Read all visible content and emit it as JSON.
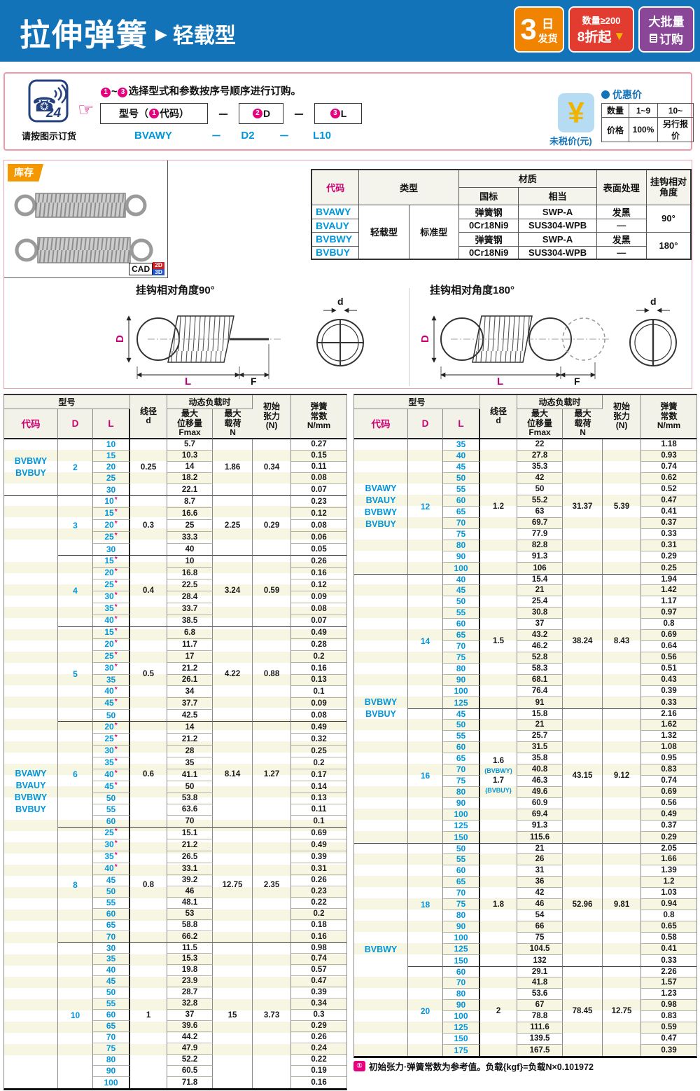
{
  "page": {
    "title": "拉伸弹簧",
    "subtitle": "轻载型",
    "arrow": "▶",
    "badges": {
      "ship": {
        "big": "3",
        "unit": "日",
        "caption": "发货"
      },
      "discount": {
        "top": "数量≥200",
        "bottom": "8折起",
        "arrow": "▼"
      },
      "bulk": {
        "top": "大批量",
        "bottom": "订购"
      }
    }
  },
  "order": {
    "phone_number": "24",
    "phone_caption": "请按图示订货",
    "hand": "☞",
    "instruction": "①~③选择型式和参数按序号顺序进行订购。",
    "boxes": [
      "型号（①代码）",
      "②D",
      "③L"
    ],
    "separator": "－",
    "example": [
      "BVAWY",
      "D2",
      "L10"
    ],
    "price": {
      "symbol": "¥",
      "caption": "未税价(元)",
      "title": "优惠价",
      "rows": [
        [
          "数量",
          "1~9",
          "10~"
        ],
        [
          "价格",
          "100%",
          "另行报价"
        ]
      ]
    }
  },
  "stock": {
    "badge": "库存",
    "cad": {
      "label": "CAD",
      "d2": "2D",
      "d3": "3D"
    }
  },
  "materials": {
    "h_code": "代码",
    "h_type": "类型",
    "h_material": "材质",
    "h_gb": "国标",
    "h_equiv": "相当",
    "h_surface": "表面处理",
    "h_angle": "挂钩相对\n角度",
    "type_light": "轻载型",
    "type_std": "标准型",
    "rows": [
      {
        "code": "BVAWY",
        "gb": "弹簧钢",
        "equiv": "SWP-A",
        "surface": "发黑",
        "angle": "90°"
      },
      {
        "code": "BVAUY",
        "gb": "0Cr18Ni9",
        "equiv": "SUS304-WPB",
        "surface": "—"
      },
      {
        "code": "BVBWY",
        "gb": "弹簧钢",
        "equiv": "SWP-A",
        "surface": "发黑",
        "angle": "180°"
      },
      {
        "code": "BVBUY",
        "gb": "0Cr18Ni9",
        "equiv": "SUS304-WPB",
        "surface": "—"
      }
    ]
  },
  "diagrams": {
    "left_title": "挂钩相对角度90°",
    "right_title": "挂钩相对角度180°",
    "dims": {
      "D": "D",
      "L": "L",
      "F": "F",
      "d": "d"
    }
  },
  "spec_header": {
    "model": "型号",
    "code": "代码",
    "D": "D",
    "L": "L",
    "wire": "线径\nd",
    "dynamic": "动态负载时",
    "fmax": "最大\n位移量\nFmax",
    "maxload": "最大\n载荷\nN",
    "tension": "初始\n张力\n(N)",
    "rate": "弹簧\n常数\nN/mm"
  },
  "left_table": {
    "blocks": [
      {
        "codes": [
          "BVBWY",
          "BVBUY"
        ],
        "groups": [
          0
        ]
      },
      {
        "codes": [
          "BVAWY",
          "BVAUY",
          "BVBWY",
          "BVBUY"
        ],
        "groups": [
          1,
          2,
          3,
          4,
          5,
          6
        ]
      }
    ],
    "groups": [
      {
        "D": "2",
        "d": "0.25",
        "load": "1.86",
        "tension": "0.34",
        "rows": [
          [
            "10",
            0,
            "5.7",
            "0.27"
          ],
          [
            "15",
            0,
            "10.3",
            "0.15"
          ],
          [
            "20",
            0,
            "14",
            "0.11"
          ],
          [
            "25",
            0,
            "18.2",
            "0.08"
          ],
          [
            "30",
            0,
            "22.1",
            "0.07"
          ]
        ]
      },
      {
        "D": "3",
        "d": "0.3",
        "load": "2.25",
        "tension": "0.29",
        "rows": [
          [
            "10",
            1,
            "8.7",
            "0.23"
          ],
          [
            "15",
            1,
            "16.6",
            "0.12"
          ],
          [
            "20",
            1,
            "25",
            "0.08"
          ],
          [
            "25",
            1,
            "33.3",
            "0.06"
          ],
          [
            "30",
            0,
            "40",
            "0.05"
          ]
        ]
      },
      {
        "D": "4",
        "d": "0.4",
        "load": "3.24",
        "tension": "0.59",
        "rows": [
          [
            "15",
            1,
            "10",
            "0.26"
          ],
          [
            "20",
            1,
            "16.8",
            "0.16"
          ],
          [
            "25",
            1,
            "22.5",
            "0.12"
          ],
          [
            "30",
            1,
            "28.4",
            "0.09"
          ],
          [
            "35",
            1,
            "33.7",
            "0.08"
          ],
          [
            "40",
            1,
            "38.5",
            "0.07"
          ]
        ]
      },
      {
        "D": "5",
        "d": "0.5",
        "load": "4.22",
        "tension": "0.88",
        "rows": [
          [
            "15",
            1,
            "6.8",
            "0.49"
          ],
          [
            "20",
            1,
            "11.7",
            "0.28"
          ],
          [
            "25",
            1,
            "17",
            "0.2"
          ],
          [
            "30",
            1,
            "21.2",
            "0.16"
          ],
          [
            "35",
            0,
            "26.1",
            "0.13"
          ],
          [
            "40",
            1,
            "34",
            "0.1"
          ],
          [
            "45",
            1,
            "37.7",
            "0.09"
          ],
          [
            "50",
            0,
            "42.5",
            "0.08"
          ]
        ]
      },
      {
        "D": "6",
        "d": "0.6",
        "load": "8.14",
        "tension": "1.27",
        "rows": [
          [
            "20",
            1,
            "14",
            "0.49"
          ],
          [
            "25",
            1,
            "21.2",
            "0.32"
          ],
          [
            "30",
            1,
            "28",
            "0.25"
          ],
          [
            "35",
            1,
            "35",
            "0.2"
          ],
          [
            "40",
            1,
            "41.1",
            "0.17"
          ],
          [
            "45",
            1,
            "50",
            "0.14"
          ],
          [
            "50",
            0,
            "53.8",
            "0.13"
          ],
          [
            "55",
            0,
            "63.6",
            "0.11"
          ],
          [
            "60",
            0,
            "70",
            "0.1"
          ]
        ]
      },
      {
        "D": "8",
        "d": "0.8",
        "load": "12.75",
        "tension": "2.35",
        "rows": [
          [
            "25",
            1,
            "15.1",
            "0.69"
          ],
          [
            "30",
            1,
            "21.2",
            "0.49"
          ],
          [
            "35",
            1,
            "26.5",
            "0.39"
          ],
          [
            "40",
            1,
            "33.1",
            "0.31"
          ],
          [
            "45",
            0,
            "39.2",
            "0.26"
          ],
          [
            "50",
            0,
            "46",
            "0.23"
          ],
          [
            "55",
            0,
            "48.1",
            "0.22"
          ],
          [
            "60",
            0,
            "53",
            "0.2"
          ],
          [
            "65",
            0,
            "58.8",
            "0.18"
          ],
          [
            "70",
            0,
            "66.2",
            "0.16"
          ]
        ]
      },
      {
        "D": "10",
        "d": "1",
        "load": "15",
        "tension": "3.73",
        "rows": [
          [
            "30",
            0,
            "11.5",
            "0.98"
          ],
          [
            "35",
            0,
            "15.3",
            "0.74"
          ],
          [
            "40",
            0,
            "19.8",
            "0.57"
          ],
          [
            "45",
            0,
            "23.9",
            "0.47"
          ],
          [
            "50",
            0,
            "28.7",
            "0.39"
          ],
          [
            "55",
            0,
            "32.8",
            "0.34"
          ],
          [
            "60",
            0,
            "37",
            "0.3"
          ],
          [
            "65",
            0,
            "39.6",
            "0.29"
          ],
          [
            "70",
            0,
            "44.2",
            "0.26"
          ],
          [
            "75",
            0,
            "47.9",
            "0.24"
          ],
          [
            "80",
            0,
            "52.2",
            "0.22"
          ],
          [
            "90",
            0,
            "60.5",
            "0.19"
          ],
          [
            "100",
            0,
            "71.8",
            "0.16"
          ]
        ]
      }
    ]
  },
  "right_table": {
    "blocks": [
      {
        "codes": [
          "BVAWY",
          "BVAUY",
          "BVBWY",
          "BVBUY"
        ],
        "groups": [
          0
        ]
      },
      {
        "codes": [
          "BVBWY",
          "BVBUY"
        ],
        "groups": [
          1,
          2
        ]
      },
      {
        "codes": [
          "BVBWY"
        ],
        "groups": [
          3,
          4
        ]
      }
    ],
    "groups": [
      {
        "D": "12",
        "d": "1.2",
        "load": "31.37",
        "tension": "5.39",
        "rows": [
          [
            "35",
            0,
            "22",
            "1.18"
          ],
          [
            "40",
            0,
            "27.8",
            "0.93"
          ],
          [
            "45",
            0,
            "35.3",
            "0.74"
          ],
          [
            "50",
            0,
            "42",
            "0.62"
          ],
          [
            "55",
            0,
            "50",
            "0.52"
          ],
          [
            "60",
            0,
            "55.2",
            "0.47"
          ],
          [
            "65",
            0,
            "63",
            "0.41"
          ],
          [
            "70",
            0,
            "69.7",
            "0.37"
          ],
          [
            "75",
            0,
            "77.9",
            "0.33"
          ],
          [
            "80",
            0,
            "82.8",
            "0.31"
          ],
          [
            "90",
            0,
            "91.3",
            "0.29"
          ],
          [
            "100",
            0,
            "106",
            "0.25"
          ]
        ]
      },
      {
        "D": "14",
        "d": "1.5",
        "load": "38.24",
        "tension": "8.43",
        "rows": [
          [
            "40",
            0,
            "15.4",
            "1.94"
          ],
          [
            "45",
            0,
            "21",
            "1.42"
          ],
          [
            "50",
            0,
            "25.4",
            "1.17"
          ],
          [
            "55",
            0,
            "30.8",
            "0.97"
          ],
          [
            "60",
            0,
            "37",
            "0.8"
          ],
          [
            "65",
            0,
            "43.2",
            "0.69"
          ],
          [
            "70",
            0,
            "46.2",
            "0.64"
          ],
          [
            "75",
            0,
            "52.8",
            "0.56"
          ],
          [
            "80",
            0,
            "58.3",
            "0.51"
          ],
          [
            "90",
            0,
            "68.1",
            "0.43"
          ],
          [
            "100",
            0,
            "76.4",
            "0.39"
          ],
          [
            "125",
            0,
            "91",
            "0.33"
          ]
        ]
      },
      {
        "D": "16",
        "d": [
          "1.6",
          "(BVBWY)",
          "1.7",
          "(BVBUY)"
        ],
        "load": "43.15",
        "tension": "9.12",
        "rows": [
          [
            "45",
            0,
            "15.8",
            "2.16"
          ],
          [
            "50",
            0,
            "21",
            "1.62"
          ],
          [
            "55",
            0,
            "25.7",
            "1.32"
          ],
          [
            "60",
            0,
            "31.5",
            "1.08"
          ],
          [
            "65",
            0,
            "35.8",
            "0.95"
          ],
          [
            "70",
            0,
            "40.8",
            "0.83"
          ],
          [
            "75",
            0,
            "46.3",
            "0.74"
          ],
          [
            "80",
            0,
            "49.6",
            "0.69"
          ],
          [
            "90",
            0,
            "60.9",
            "0.56"
          ],
          [
            "100",
            0,
            "69.4",
            "0.49"
          ],
          [
            "125",
            0,
            "91.3",
            "0.37"
          ],
          [
            "150",
            0,
            "115.6",
            "0.29"
          ]
        ]
      },
      {
        "D": "18",
        "d": "1.8",
        "load": "52.96",
        "tension": "9.81",
        "rows": [
          [
            "50",
            0,
            "21",
            "2.05"
          ],
          [
            "55",
            0,
            "26",
            "1.66"
          ],
          [
            "60",
            0,
            "31",
            "1.39"
          ],
          [
            "65",
            0,
            "36",
            "1.2"
          ],
          [
            "70",
            0,
            "42",
            "1.03"
          ],
          [
            "75",
            0,
            "46",
            "0.94"
          ],
          [
            "80",
            0,
            "54",
            "0.8"
          ],
          [
            "90",
            0,
            "66",
            "0.65"
          ],
          [
            "100",
            0,
            "75",
            "0.58"
          ],
          [
            "125",
            0,
            "104.5",
            "0.41"
          ],
          [
            "150",
            0,
            "132",
            "0.33"
          ]
        ]
      },
      {
        "D": "20",
        "d": "2",
        "load": "78.45",
        "tension": "12.75",
        "rows": [
          [
            "60",
            0,
            "29.1",
            "2.26"
          ],
          [
            "70",
            0,
            "41.8",
            "1.57"
          ],
          [
            "80",
            0,
            "53.6",
            "1.23"
          ],
          [
            "90",
            0,
            "67",
            "0.98"
          ],
          [
            "100",
            0,
            "78.8",
            "0.83"
          ],
          [
            "125",
            0,
            "111.6",
            "0.59"
          ],
          [
            "150",
            0,
            "139.5",
            "0.47"
          ],
          [
            "175",
            0,
            "167.5",
            "0.39"
          ]
        ]
      }
    ]
  },
  "footnote": {
    "icon": "①",
    "text": "初始张力·弹簧常数为参考值。负载{kgf}=负载N×0.101972"
  }
}
